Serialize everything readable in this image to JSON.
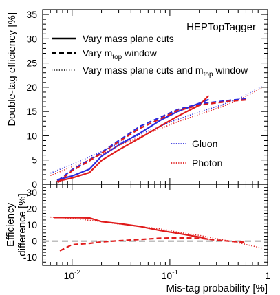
{
  "chart_data": [
    {
      "type": "line",
      "panel": "upper",
      "ylabel": "Double-tag efficiency [%]",
      "ylim": [
        0,
        36
      ],
      "yticks": [
        0,
        5,
        10,
        15,
        20,
        25,
        30,
        35
      ],
      "xscale": "log",
      "xlim": [
        0.005,
        1
      ],
      "label": "HEPTopTagger",
      "legend_linestyles": [
        {
          "style": "solid",
          "text": "Vary mass plane cuts",
          "sub": "",
          "tail": ""
        },
        {
          "style": "dashed",
          "text": "Vary m",
          "sub": "top",
          "tail": " window"
        },
        {
          "style": "dotted",
          "text": "Vary mass plane cuts and m",
          "sub": "top",
          "tail": " window"
        }
      ],
      "legend_colors": [
        {
          "name": "Gluon",
          "color": "#2b2bdd"
        },
        {
          "name": "Photon",
          "color": "#e01b1b"
        }
      ],
      "series": [
        {
          "name": "Gluon",
          "style": "solid",
          "color": "#2b2bdd",
          "x": [
            0.007,
            0.01,
            0.015,
            0.02,
            0.03,
            0.05,
            0.08,
            0.12,
            0.2,
            0.25
          ],
          "y": [
            0.9,
            1.7,
            3.1,
            5.8,
            8.1,
            10.6,
            13.2,
            15.0,
            16.7,
            17.5
          ]
        },
        {
          "name": "Photon",
          "style": "solid",
          "color": "#e01b1b",
          "x": [
            0.007,
            0.01,
            0.015,
            0.02,
            0.03,
            0.05,
            0.08,
            0.12,
            0.2,
            0.25
          ],
          "y": [
            0.6,
            1.3,
            2.4,
            4.9,
            7.1,
            9.6,
            12.0,
            14.0,
            16.3,
            18.3
          ]
        },
        {
          "name": "Gluon",
          "style": "dashed",
          "color": "#2b2bdd",
          "x": [
            0.0072,
            0.01,
            0.015,
            0.02,
            0.03,
            0.05,
            0.08,
            0.12,
            0.2,
            0.3,
            0.45,
            0.6
          ],
          "y": [
            0.8,
            3.0,
            5.0,
            6.6,
            9.0,
            12.0,
            13.8,
            15.4,
            16.6,
            17.0,
            17.4,
            17.6
          ]
        },
        {
          "name": "Photon",
          "style": "dashed",
          "color": "#e01b1b",
          "x": [
            0.0072,
            0.01,
            0.015,
            0.02,
            0.03,
            0.05,
            0.08,
            0.12,
            0.2,
            0.3,
            0.45,
            0.6
          ],
          "y": [
            0.4,
            2.8,
            4.8,
            6.4,
            8.8,
            11.6,
            13.5,
            15.2,
            16.3,
            16.8,
            17.2,
            17.4
          ]
        },
        {
          "name": "Gluon",
          "style": "dotted",
          "color": "#2b2bdd",
          "x": [
            0.006,
            0.01,
            0.02,
            0.03,
            0.05,
            0.08,
            0.12,
            0.2,
            0.3,
            0.5,
            0.9
          ],
          "y": [
            2.3,
            4.1,
            6.7,
            8.5,
            10.3,
            12.0,
            13.4,
            14.9,
            16.0,
            17.6,
            20.3
          ]
        },
        {
          "name": "Photon",
          "style": "dotted",
          "color": "#e01b1b",
          "x": [
            0.006,
            0.01,
            0.02,
            0.03,
            0.05,
            0.08,
            0.12,
            0.2,
            0.3,
            0.5,
            0.9
          ],
          "y": [
            1.8,
            3.6,
            6.2,
            8.0,
            9.8,
            11.5,
            12.9,
            14.4,
            15.6,
            17.3,
            20.0
          ]
        }
      ]
    },
    {
      "type": "line",
      "panel": "lower",
      "ylabel": "Efficiency difference [%]",
      "ylabel_lines": [
        "Efficiency",
        "difference [%]"
      ],
      "ylim": [
        -15,
        35
      ],
      "yticks": [
        -10,
        0,
        10,
        20,
        30
      ],
      "xscale": "log",
      "xlim": [
        0.005,
        1
      ],
      "xlabel": "Mis-tag probability [%]",
      "xticks": [
        {
          "value": 0.01,
          "base": "10",
          "exp": "-2"
        },
        {
          "value": 0.1,
          "base": "10",
          "exp": "-1"
        },
        {
          "value": 1,
          "base": "1",
          "exp": ""
        }
      ],
      "reference_line": 0,
      "series": [
        {
          "style": "solid",
          "color": "#e01b1b",
          "x": [
            0.0065,
            0.01,
            0.015,
            0.02,
            0.03,
            0.05,
            0.08,
            0.12,
            0.2,
            0.25
          ],
          "y": [
            14.5,
            14.5,
            14.3,
            12.0,
            10.8,
            9.0,
            6.5,
            4.8,
            2.5,
            1.0
          ]
        },
        {
          "style": "dashed",
          "color": "#e01b1b",
          "x": [
            0.0075,
            0.01,
            0.015,
            0.02,
            0.03,
            0.05,
            0.08,
            0.12,
            0.2,
            0.3,
            0.45,
            0.6
          ],
          "y": [
            -6.0,
            -2.2,
            -1.5,
            -0.5,
            0.2,
            1.0,
            1.8,
            2.0,
            1.8,
            0.6,
            -0.3,
            -0.8
          ]
        },
        {
          "style": "dotted",
          "color": "#e01b1b",
          "x": [
            0.006,
            0.01,
            0.02,
            0.03,
            0.05,
            0.08,
            0.12,
            0.2,
            0.3,
            0.5,
            0.9
          ],
          "y": [
            14.8,
            14.0,
            12.0,
            10.5,
            9.0,
            7.5,
            5.5,
            3.5,
            1.5,
            -1.0,
            -4.5
          ]
        }
      ]
    }
  ]
}
